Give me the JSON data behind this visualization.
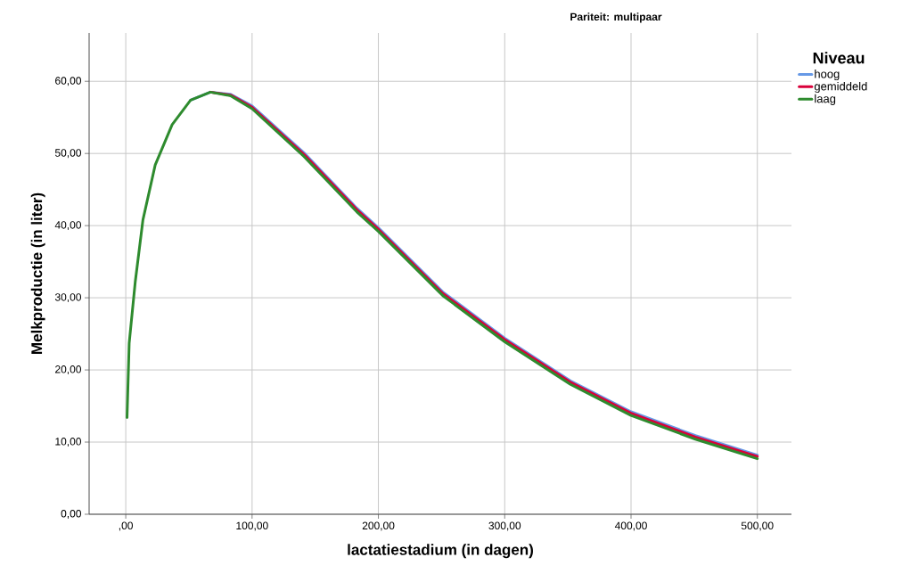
{
  "chart_data": {
    "type": "line",
    "title": "Pariteit: multipaar",
    "xlabel": "lactatiestadium (in dagen)",
    "ylabel": "Melkproductie (in liter)",
    "legend_title": "Niveau",
    "x": [
      1,
      2.7,
      7.5,
      13.6,
      23.3,
      36.7,
      51.3,
      67,
      83,
      100,
      141,
      183,
      200,
      251,
      300,
      352,
      400,
      451,
      500
    ],
    "series": [
      {
        "name": "hoog",
        "color": "#6699e6",
        "values": [
          null,
          null,
          null,
          null,
          null,
          null,
          57.4,
          58.5,
          58.2,
          56.6,
          50.1,
          42.4,
          39.7,
          30.8,
          24.4,
          18.5,
          14.2,
          10.9,
          8.2
        ]
      },
      {
        "name": "gemiddeld",
        "color": "#d9003a",
        "values": [
          null,
          null,
          null,
          null,
          null,
          null,
          null,
          58.5,
          58.1,
          56.4,
          49.9,
          42.2,
          39.5,
          30.6,
          24.2,
          18.3,
          14.0,
          10.7,
          8.0
        ]
      },
      {
        "name": "laag",
        "color": "#2e8b2e",
        "values": [
          13.4,
          23.7,
          32.2,
          40.8,
          48.4,
          54.0,
          57.4,
          58.5,
          58.0,
          56.2,
          49.6,
          41.9,
          39.2,
          30.3,
          23.9,
          18.0,
          13.7,
          10.4,
          7.7
        ]
      }
    ],
    "xlim": [
      -29,
      527
    ],
    "ylim": [
      0,
      66.7
    ],
    "xticks": [
      {
        "value": 0,
        "label": ",00"
      },
      {
        "value": 100,
        "label": "100,00"
      },
      {
        "value": 200,
        "label": "200,00"
      },
      {
        "value": 300,
        "label": "300,00"
      },
      {
        "value": 400,
        "label": "400,00"
      },
      {
        "value": 500,
        "label": "500,00"
      }
    ],
    "yticks": [
      {
        "value": 0,
        "label": "0,00"
      },
      {
        "value": 10,
        "label": "10,00"
      },
      {
        "value": 20,
        "label": "20,00"
      },
      {
        "value": 30,
        "label": "30,00"
      },
      {
        "value": 40,
        "label": "40,00"
      },
      {
        "value": 50,
        "label": "50,00"
      },
      {
        "value": 60,
        "label": "60,00"
      }
    ],
    "grid": true,
    "legend": "top right",
    "marker": "none",
    "line_style": "solid"
  }
}
